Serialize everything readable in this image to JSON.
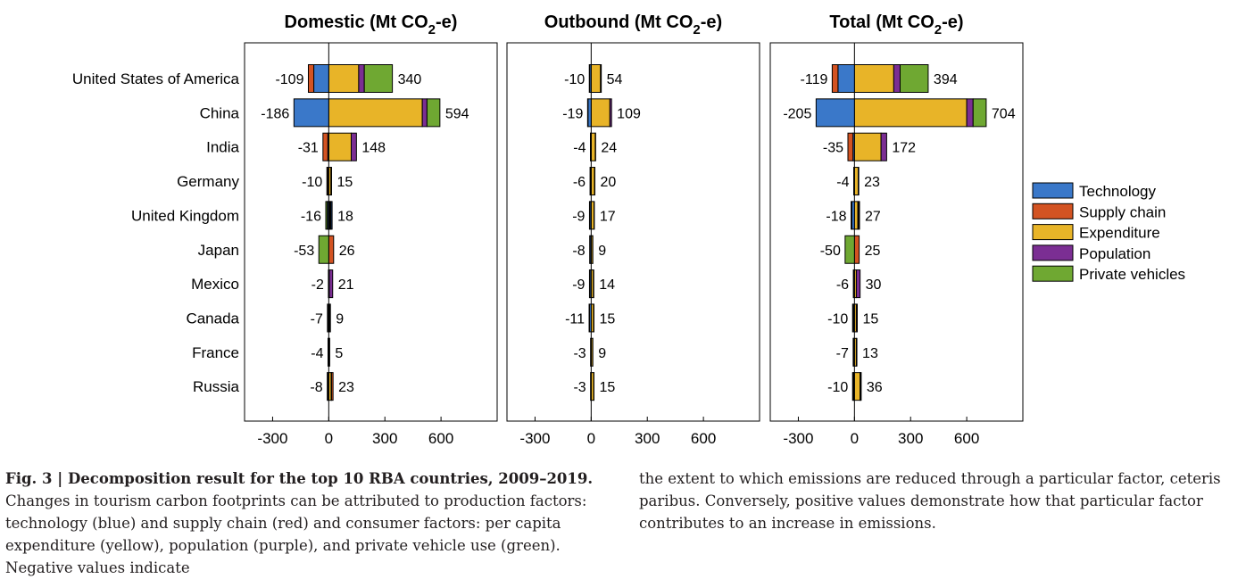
{
  "chart_data": {
    "type": "bar",
    "stacked": true,
    "orientation": "horizontal",
    "categories": [
      "United States of America",
      "China",
      "India",
      "Germany",
      "United Kingdom",
      "Japan",
      "Mexico",
      "Canada",
      "France",
      "Russia"
    ],
    "legend": {
      "placement": "right",
      "items": [
        {
          "name": "Technology",
          "color": "#3a78c9"
        },
        {
          "name": "Supply chain",
          "color": "#d35322"
        },
        {
          "name": "Expenditure",
          "color": "#e8b428"
        },
        {
          "name": "Population",
          "color": "#7b2e93"
        },
        {
          "name": "Private vehicles",
          "color": "#6fa832"
        }
      ]
    },
    "xlim": [
      -450,
      900
    ],
    "xticks": [
      -300,
      0,
      300,
      600
    ],
    "xtick_labels": [
      "-300",
      "0",
      "300",
      "600"
    ],
    "panels": [
      {
        "title_main": "Domestic (Mt CO",
        "title_sub": "2",
        "title_end": "-e)",
        "neg_labels": [
          "-109",
          "-186",
          "-31",
          "-10",
          "-16",
          "-53",
          "-2",
          "-7",
          "-4",
          "-8"
        ],
        "pos_labels": [
          "340",
          "594",
          "148",
          "15",
          "18",
          "26",
          "21",
          "9",
          "5",
          "23"
        ],
        "negative_series": [
          {
            "name": "Technology",
            "values": [
              -80,
              -186,
              -5,
              -3,
              -6,
              0,
              0,
              -2,
              -1,
              -1
            ]
          },
          {
            "name": "Supply chain",
            "values": [
              -29,
              0,
              -26,
              -5,
              -2,
              0,
              -2,
              -3,
              -1,
              -4
            ]
          },
          {
            "name": "Private vehicles",
            "values": [
              0,
              0,
              0,
              -2,
              -8,
              -53,
              0,
              -2,
              -2,
              -3
            ]
          }
        ],
        "positive_series": [
          {
            "name": "Expenditure",
            "values": [
              160,
              500,
              120,
              12,
              5,
              0,
              3,
              3,
              2,
              13
            ]
          },
          {
            "name": "Population",
            "values": [
              30,
              25,
              28,
              2,
              3,
              0,
              18,
              4,
              2,
              2
            ]
          },
          {
            "name": "Private vehicles",
            "values": [
              150,
              69,
              0,
              0,
              4,
              0,
              0,
              0,
              0,
              0
            ]
          },
          {
            "name": "Supply chain",
            "values": [
              0,
              0,
              0,
              0,
              0,
              26,
              0,
              0,
              0,
              8
            ]
          },
          {
            "name": "Technology",
            "values": [
              0,
              0,
              0,
              1,
              6,
              0,
              0,
              2,
              1,
              0
            ]
          }
        ]
      },
      {
        "title_main": "Outbound (Mt CO",
        "title_sub": "2",
        "title_end": "-e)",
        "neg_labels": [
          "-10",
          "-19",
          "-4",
          "-6",
          "-9",
          "-8",
          "-9",
          "-11",
          "-3",
          "-3"
        ],
        "pos_labels": [
          "54",
          "109",
          "24",
          "20",
          "17",
          "9",
          "14",
          "15",
          "9",
          "15"
        ],
        "negative_series": [
          {
            "name": "Technology",
            "values": [
              -8,
              -17,
              -3,
              -4,
              -7,
              -6,
              -7,
              -9,
              -2,
              -2
            ]
          },
          {
            "name": "Supply chain",
            "values": [
              -2,
              -2,
              -1,
              -2,
              -2,
              -2,
              -2,
              -2,
              -1,
              -1
            ]
          }
        ],
        "positive_series": [
          {
            "name": "Expenditure",
            "values": [
              50,
              100,
              22,
              18,
              15,
              8,
              12,
              13,
              8,
              14
            ]
          },
          {
            "name": "Population",
            "values": [
              4,
              9,
              2,
              2,
              2,
              1,
              2,
              2,
              1,
              1
            ]
          }
        ]
      },
      {
        "title_main": "Total (Mt CO",
        "title_sub": "2",
        "title_end": "-e)",
        "neg_labels": [
          "-119",
          "-205",
          "-35",
          "-4",
          "-18",
          "-50",
          "-6",
          "-10",
          "-7",
          "-10"
        ],
        "pos_labels": [
          "394",
          "704",
          "172",
          "23",
          "27",
          "25",
          "30",
          "15",
          "13",
          "36"
        ],
        "negative_series": [
          {
            "name": "Technology",
            "values": [
              -88,
              -205,
              -8,
              -2,
              -14,
              0,
              -2,
              -5,
              -3,
              -3
            ]
          },
          {
            "name": "Supply chain",
            "values": [
              -31,
              0,
              -27,
              -2,
              -4,
              0,
              -4,
              -3,
              -2,
              -4
            ]
          },
          {
            "name": "Private vehicles",
            "values": [
              0,
              0,
              0,
              0,
              0,
              -50,
              0,
              -2,
              -2,
              -3
            ]
          }
        ],
        "positive_series": [
          {
            "name": "Expenditure",
            "values": [
              210,
              600,
              142,
              20,
              18,
              0,
              10,
              10,
              10,
              30
            ]
          },
          {
            "name": "Population",
            "values": [
              34,
              34,
              30,
              3,
              5,
              0,
              20,
              5,
              3,
              3
            ]
          },
          {
            "name": "Private vehicles",
            "values": [
              150,
              70,
              0,
              0,
              4,
              0,
              0,
              0,
              0,
              0
            ]
          },
          {
            "name": "Supply chain",
            "values": [
              0,
              0,
              0,
              0,
              0,
              25,
              0,
              0,
              0,
              3
            ]
          }
        ]
      }
    ]
  },
  "caption": {
    "fig_label": "Fig. 3 | Decomposition result for the top 10 RBA countries, 2009–2019.",
    "left_text": " Changes in tourism carbon footprints can be attributed to production factors: technology (blue) and supply chain (red) and consumer factors: per capita expenditure (yellow), population (purple), and private vehicle use (green). Negative values indicate",
    "right_text": "the extent to which emissions are reduced through a particular factor, ceteris paribus. Conversely, positive values demonstrate how that particular factor contributes to an increase in emissions."
  }
}
